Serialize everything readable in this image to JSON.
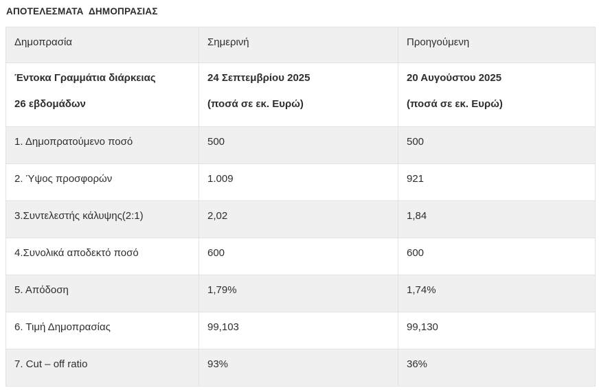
{
  "page_title": "ΑΠΟΤΕΛΕΣΜΑΤΑ  ΔΗΜΟΠΡΑΣΙΑΣ",
  "table": {
    "columns": [
      "Δημοπρασία",
      "Σημερινή",
      "Προηγούμενη"
    ],
    "subheader": {
      "auction_line1": "Έντοκα Γραμμάτια διάρκειας",
      "auction_line2": "26 εβδομάδων",
      "current_line1": "24 Σεπτεμβρίου 2025",
      "current_line2": "(ποσά σε εκ. Ευρώ)",
      "previous_line1": "20 Αυγούστου 2025",
      "previous_line2": "(ποσά σε εκ. Ευρώ)"
    },
    "rows": [
      {
        "label": "1. Δημοπρατούμενο ποσό",
        "current": "500",
        "previous": "500"
      },
      {
        "label": "2. Ύψος προσφορών",
        "current": "1.009",
        "previous": "921"
      },
      {
        "label": "3.Συντελεστής κάλυψης(2:1)",
        "current": "2,02",
        "previous": "1,84"
      },
      {
        "label": "4.Συνολικά αποδεκτό ποσό",
        "current": "600",
        "previous": "600"
      },
      {
        "label": "5. Απόδοση",
        "current": "1,79%",
        "previous": "1,74%"
      },
      {
        "label": "6. Τιμή Δημοπρασίας",
        "current": "99,103",
        "previous": "99,130"
      },
      {
        "label": "7. Cut – off ratio",
        "current": "93%",
        "previous": "36%"
      }
    ]
  },
  "colors": {
    "stripe_bg": "#f0f0f0",
    "border": "#e2e2e2",
    "text": "#2e2e2e",
    "page_bg": "#ffffff"
  }
}
